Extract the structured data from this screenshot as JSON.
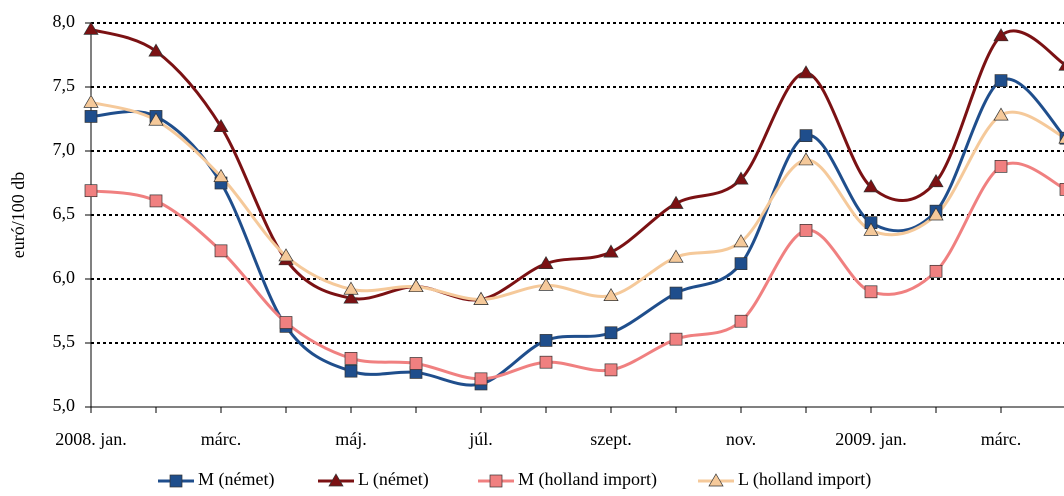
{
  "chart_data": {
    "type": "line",
    "y_label": "euró/100 db",
    "categories": [
      "2008. jan.",
      null,
      "márc.",
      null,
      "máj.",
      null,
      "júl.",
      null,
      "szept.",
      null,
      "nov.",
      null,
      "2009. jan.",
      null,
      "márc.",
      null
    ],
    "series": [
      {
        "name": "M (német)",
        "color": "#1f4e8c",
        "marker": "square",
        "values": [
          7.27,
          7.27,
          6.75,
          5.63,
          5.28,
          5.27,
          5.18,
          5.52,
          5.58,
          5.89,
          6.12,
          7.12,
          6.44,
          6.53,
          7.55,
          7.1
        ]
      },
      {
        "name": "L (német)",
        "color": "#7b1113",
        "marker": "triangle",
        "values": [
          7.95,
          7.78,
          7.19,
          6.15,
          5.85,
          5.94,
          5.84,
          6.12,
          6.21,
          6.59,
          6.78,
          7.61,
          6.72,
          6.76,
          7.9,
          7.67
        ]
      },
      {
        "name": "M (holland import)",
        "color": "#f08080",
        "marker": "square",
        "values": [
          6.69,
          6.61,
          6.22,
          5.66,
          5.38,
          5.34,
          5.22,
          5.35,
          5.29,
          5.53,
          5.67,
          6.38,
          5.9,
          6.06,
          6.88,
          6.7
        ]
      },
      {
        "name": "L (holland import)",
        "color": "#f5c99a",
        "marker": "triangle",
        "values": [
          7.38,
          7.24,
          6.8,
          6.18,
          5.92,
          5.94,
          5.84,
          5.95,
          5.87,
          6.17,
          6.29,
          6.93,
          6.38,
          6.5,
          7.28,
          7.1
        ]
      }
    ],
    "ylim": [
      5,
      8
    ],
    "yticks": [
      {
        "value": 5,
        "label": "5,0"
      },
      {
        "value": 5.5,
        "label": "5,5"
      },
      {
        "value": 6,
        "label": "6,0"
      },
      {
        "value": 6.5,
        "label": "6,5"
      },
      {
        "value": 7,
        "label": "7,0"
      },
      {
        "value": 7.5,
        "label": "7,5"
      },
      {
        "value": 8,
        "label": "8,0"
      }
    ],
    "grid": true,
    "legend": "bottom"
  }
}
